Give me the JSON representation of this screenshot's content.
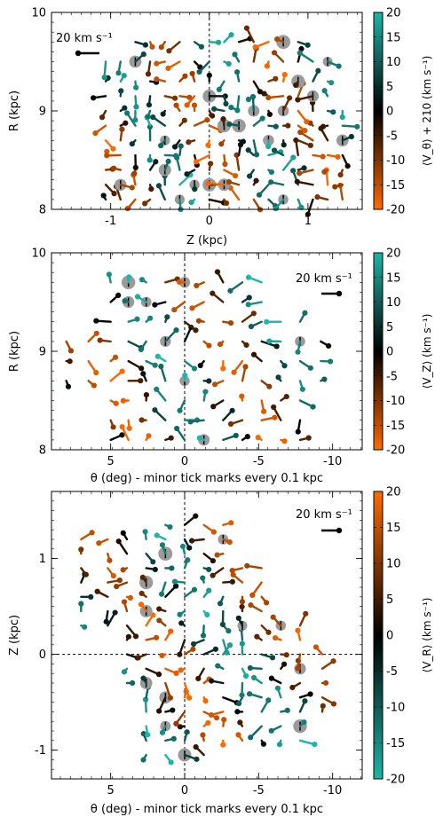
{
  "colormap": [
    "#ff6a00",
    "#000000",
    "#1fb5a8"
  ],
  "chart_data": [
    {
      "type": "scatter",
      "title": "",
      "xlabel": "Z (kpc)",
      "ylabel": "R (kpc)",
      "xlim": [
        -1.6,
        1.55
      ],
      "ylim": [
        8.0,
        10.0
      ],
      "xticks": [
        -1,
        0,
        1
      ],
      "xtick_labels": [
        "-1",
        "0",
        "1"
      ],
      "yticks": [
        8,
        9,
        10
      ],
      "ytick_labels": [
        "8",
        "9",
        "10"
      ],
      "x_minor_step": 0.1,
      "y_minor_step": 0.1,
      "vertical_reference_line": 0,
      "horizontal_reference_line": null,
      "colorbar": {
        "label": "⟨V_θ⟩ + 210 (km s⁻¹)",
        "min": -20,
        "max": 20,
        "ticks": [
          20,
          15,
          10,
          5,
          0,
          -5,
          -10,
          -15,
          -20
        ],
        "reversed": false
      },
      "arrow_key": {
        "text": "20 km s⁻¹",
        "position": "top-left"
      },
      "grid_x": [
        -1.05,
        -0.9,
        -0.75,
        -0.6,
        -0.45,
        -0.3,
        -0.15,
        0.0,
        0.15,
        0.3,
        0.45,
        0.6,
        0.75,
        0.9,
        1.05,
        1.2,
        1.35
      ],
      "grid_y": [
        8.1,
        8.25,
        8.4,
        8.55,
        8.7,
        8.85,
        9.0,
        9.15,
        9.3,
        9.5,
        9.7
      ],
      "color_seed": 3,
      "shape": "zr"
    },
    {
      "type": "scatter",
      "title": "",
      "xlabel": "θ (deg) - minor tick marks every 0.1 kpc",
      "ylabel": "R (kpc)",
      "xlim": [
        9,
        -12
      ],
      "ylim": [
        8.0,
        10.0
      ],
      "xticks": [
        5,
        0,
        -5,
        -10
      ],
      "xtick_labels": [
        "5",
        "0",
        "-5",
        "-10"
      ],
      "yticks": [
        8,
        9,
        10
      ],
      "ytick_labels": [
        "8",
        "9",
        "10"
      ],
      "x_minor_step": 0.7,
      "y_minor_step": 0.1,
      "vertical_reference_line": 0,
      "horizontal_reference_line": null,
      "colorbar": {
        "label": "⟨V_Z⟩ (km s⁻¹)",
        "min": -20,
        "max": 20,
        "ticks": [
          20,
          15,
          10,
          5,
          0,
          -5,
          -10,
          -15,
          -20
        ],
        "reversed": true
      },
      "arrow_key": {
        "text": "20 km s⁻¹",
        "position": "top-right"
      },
      "grid_x": [
        8,
        6.5,
        5,
        3.8,
        2.6,
        1.3,
        0,
        -1.3,
        -2.6,
        -3.9,
        -5.2,
        -6.5,
        -7.8,
        -9.2
      ],
      "grid_y": [
        8.1,
        8.3,
        8.5,
        8.7,
        8.9,
        9.1,
        9.3,
        9.5,
        9.7
      ],
      "color_seed": 11,
      "shape": "thetar"
    },
    {
      "type": "scatter",
      "title": "",
      "xlabel": "θ (deg) - minor tick marks every 0.1 kpc",
      "ylabel": "Z (kpc)",
      "xlim": [
        9,
        -12
      ],
      "ylim": [
        -1.3,
        1.7
      ],
      "xticks": [
        5,
        0,
        -5,
        -10
      ],
      "xtick_labels": [
        "5",
        "0",
        "-5",
        "-10"
      ],
      "yticks": [
        1,
        0,
        -1
      ],
      "ytick_labels": [
        "1",
        "0",
        "-1"
      ],
      "x_minor_step": 0.7,
      "y_minor_step": 0.1,
      "vertical_reference_line": 0,
      "horizontal_reference_line": 0,
      "colorbar": {
        "label": "⟨V_R⟩ (km s⁻¹)",
        "min": -20,
        "max": 20,
        "ticks": [
          20,
          15,
          10,
          5,
          0,
          -5,
          -10,
          -15,
          -20
        ],
        "reversed": false
      },
      "arrow_key": {
        "text": "20 km s⁻¹",
        "position": "top-right"
      },
      "grid_x": [
        7,
        5.2,
        3.9,
        2.6,
        1.3,
        0,
        -1.3,
        -2.6,
        -3.9,
        -5.2,
        -6.5,
        -7.8,
        -9.3
      ],
      "grid_y": [
        -1.05,
        -0.9,
        -0.75,
        -0.6,
        -0.45,
        -0.3,
        -0.15,
        0.0,
        0.15,
        0.3,
        0.45,
        0.6,
        0.75,
        0.9,
        1.05,
        1.2,
        1.35
      ],
      "color_seed": 23,
      "shape": "thetaz"
    }
  ]
}
